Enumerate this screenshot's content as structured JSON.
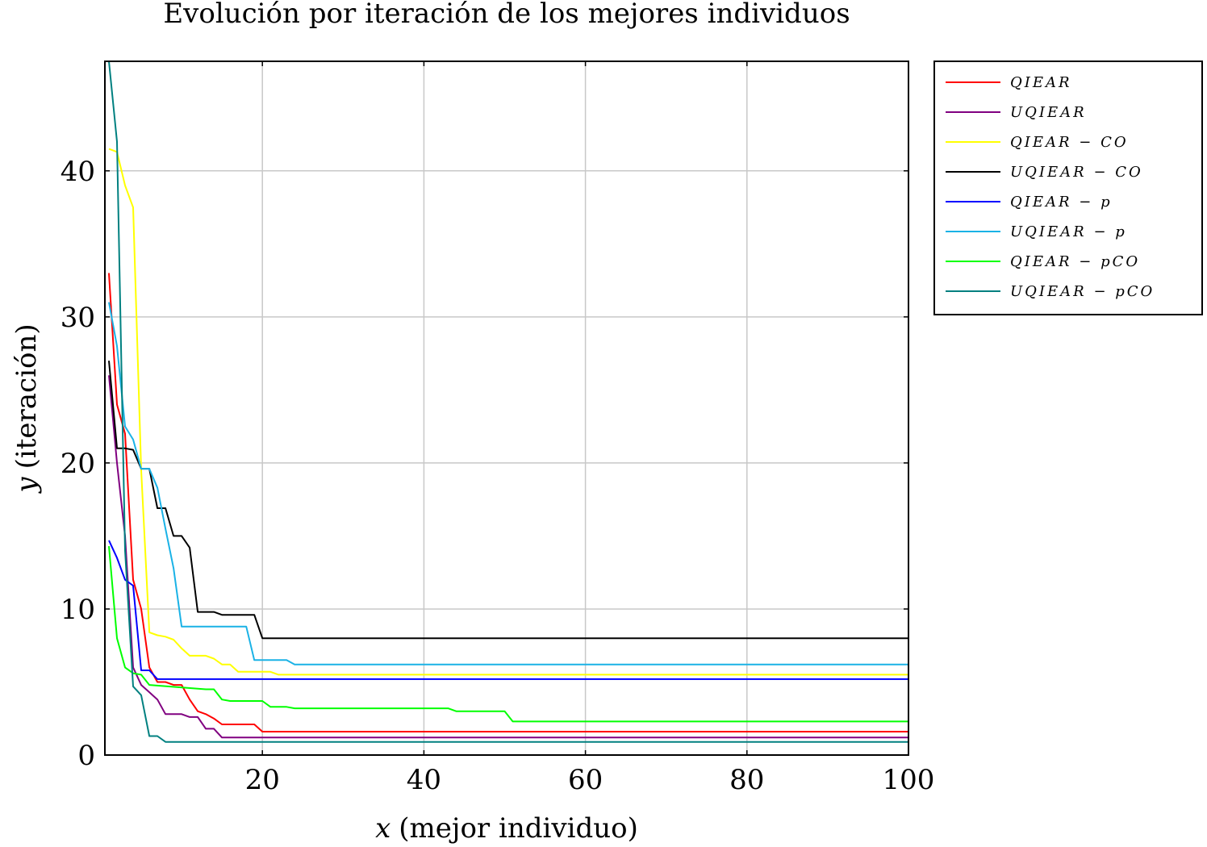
{
  "chart_data": {
    "type": "line",
    "title": "Evolución por iteración de los mejores individuos",
    "xlabel": "x (mejor individuo)",
    "xlabel_var": "x",
    "xlabel_text": "(mejor individuo)",
    "ylabel": "y (iteración)",
    "ylabel_var": "y",
    "ylabel_text": "(iteración)",
    "xlim": [
      0.5,
      100
    ],
    "ylim": [
      0,
      47.5
    ],
    "xticks": [
      20,
      40,
      60,
      80,
      100
    ],
    "yticks": [
      0,
      10,
      20,
      30,
      40
    ],
    "grid": true,
    "legend_position": "outside-top-right",
    "series": [
      {
        "name": "QIEAR",
        "label": "QIEAR",
        "color": "#ff0000",
        "points": [
          [
            1,
            33
          ],
          [
            2,
            24
          ],
          [
            3,
            22
          ],
          [
            4,
            12
          ],
          [
            5,
            10
          ],
          [
            6,
            6
          ],
          [
            7,
            5
          ],
          [
            8,
            5
          ],
          [
            9,
            4.8
          ],
          [
            10,
            4.8
          ],
          [
            11,
            3.8
          ],
          [
            12,
            3
          ],
          [
            13,
            2.8
          ],
          [
            14,
            2.5
          ],
          [
            15,
            2.1
          ],
          [
            19,
            2.1
          ],
          [
            20,
            1.6
          ],
          [
            100,
            1.6
          ]
        ]
      },
      {
        "name": "UQIEAR",
        "label": "UQIEAR",
        "color": "#800080",
        "points": [
          [
            1,
            26
          ],
          [
            2,
            20
          ],
          [
            3,
            15
          ],
          [
            4,
            6
          ],
          [
            5,
            4.8
          ],
          [
            6,
            4.3
          ],
          [
            7,
            3.8
          ],
          [
            8,
            2.8
          ],
          [
            10,
            2.8
          ],
          [
            11,
            2.6
          ],
          [
            12,
            2.6
          ],
          [
            13,
            1.8
          ],
          [
            14,
            1.8
          ],
          [
            15,
            1.2
          ],
          [
            100,
            1.2
          ]
        ]
      },
      {
        "name": "QIEAR-CO",
        "label": "QIEAR − CO",
        "color": "#ffff00",
        "points": [
          [
            1,
            41.5
          ],
          [
            2,
            41.3
          ],
          [
            3,
            39
          ],
          [
            4,
            37.5
          ],
          [
            5,
            19.5
          ],
          [
            6,
            8.4
          ],
          [
            7,
            8.2
          ],
          [
            8,
            8.1
          ],
          [
            9,
            7.9
          ],
          [
            10,
            7.3
          ],
          [
            11,
            6.8
          ],
          [
            13,
            6.8
          ],
          [
            14,
            6.6
          ],
          [
            15,
            6.2
          ],
          [
            16,
            6.2
          ],
          [
            17,
            5.7
          ],
          [
            21,
            5.7
          ],
          [
            22,
            5.5
          ],
          [
            100,
            5.5
          ]
        ]
      },
      {
        "name": "UQIEAR-CO",
        "label": "UQIEAR − CO",
        "color": "#000000",
        "points": [
          [
            1,
            27
          ],
          [
            2,
            21
          ],
          [
            3,
            21
          ],
          [
            4,
            20.9
          ],
          [
            5,
            19.6
          ],
          [
            6,
            19.6
          ],
          [
            7,
            16.9
          ],
          [
            8,
            16.9
          ],
          [
            9,
            15
          ],
          [
            10,
            15
          ],
          [
            11,
            14.2
          ],
          [
            12,
            9.8
          ],
          [
            13,
            9.8
          ],
          [
            14,
            9.8
          ],
          [
            15,
            9.6
          ],
          [
            19,
            9.6
          ],
          [
            20,
            8
          ],
          [
            100,
            8
          ]
        ]
      },
      {
        "name": "QIEAR-p",
        "label": "QIEAR − p",
        "color": "#0000ff",
        "points": [
          [
            1,
            14.7
          ],
          [
            2,
            13.5
          ],
          [
            3,
            12
          ],
          [
            4,
            11.6
          ],
          [
            5,
            5.8
          ],
          [
            6,
            5.8
          ],
          [
            7,
            5.2
          ],
          [
            100,
            5.2
          ]
        ]
      },
      {
        "name": "UQIEAR-p",
        "label": "UQIEAR − p",
        "color": "#1ab2e6",
        "points": [
          [
            1,
            31
          ],
          [
            2,
            28
          ],
          [
            3,
            22.5
          ],
          [
            4,
            21.6
          ],
          [
            5,
            19.6
          ],
          [
            6,
            19.6
          ],
          [
            7,
            18.3
          ],
          [
            8,
            15.5
          ],
          [
            9,
            12.8
          ],
          [
            10,
            8.8
          ],
          [
            18,
            8.8
          ],
          [
            19,
            6.5
          ],
          [
            23,
            6.5
          ],
          [
            24,
            6.2
          ],
          [
            100,
            6.2
          ]
        ]
      },
      {
        "name": "QIEAR-pCO",
        "label": "QIEAR − pCO",
        "color": "#00ff00",
        "points": [
          [
            1,
            14.3
          ],
          [
            2,
            8
          ],
          [
            3,
            6
          ],
          [
            4,
            5.6
          ],
          [
            5,
            5.5
          ],
          [
            6,
            4.8
          ],
          [
            13,
            4.5
          ],
          [
            14,
            4.5
          ],
          [
            15,
            3.8
          ],
          [
            16,
            3.7
          ],
          [
            20,
            3.7
          ],
          [
            21,
            3.3
          ],
          [
            23,
            3.3
          ],
          [
            24,
            3.2
          ],
          [
            43,
            3.2
          ],
          [
            44,
            3
          ],
          [
            50,
            3
          ],
          [
            51,
            2.3
          ],
          [
            100,
            2.3
          ]
        ]
      },
      {
        "name": "UQIEAR-pCO",
        "label": "UQIEAR − pCO",
        "color": "#008080",
        "points": [
          [
            1,
            47.5
          ],
          [
            2,
            42
          ],
          [
            3,
            14
          ],
          [
            4,
            4.7
          ],
          [
            5,
            4.1
          ],
          [
            6,
            1.3
          ],
          [
            7,
            1.3
          ],
          [
            8,
            0.9
          ],
          [
            100,
            0.9
          ]
        ]
      }
    ]
  }
}
